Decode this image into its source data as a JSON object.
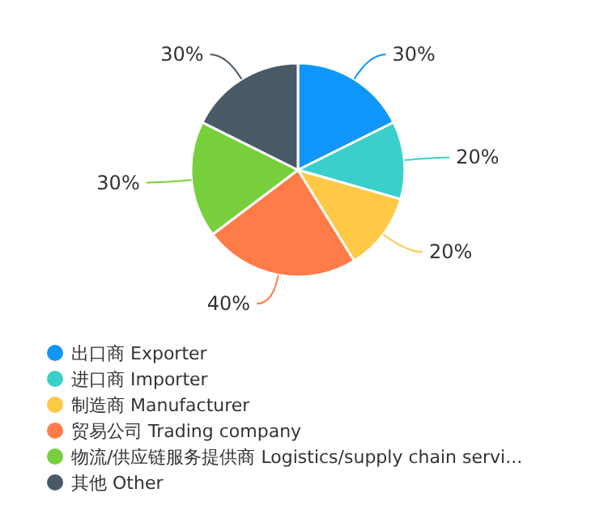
{
  "chart_data": {
    "type": "pie",
    "categories": [
      "出口商 Exporter",
      "进口商 Importer",
      "制造商 Manufacturer",
      "贸易公司 Trading company",
      "物流/供应链服务提供商 Logistics/supply chain servi...",
      "其他 Other"
    ],
    "values": [
      30,
      20,
      20,
      40,
      30,
      30
    ],
    "colors": [
      "#0f96fa",
      "#3acfca",
      "#ffc845",
      "#ff7b47",
      "#77cf3c",
      "#475a66"
    ],
    "value_labels": [
      "30%",
      "20%",
      "20%",
      "40%",
      "30%",
      "30%"
    ],
    "legend": "bottom left"
  }
}
